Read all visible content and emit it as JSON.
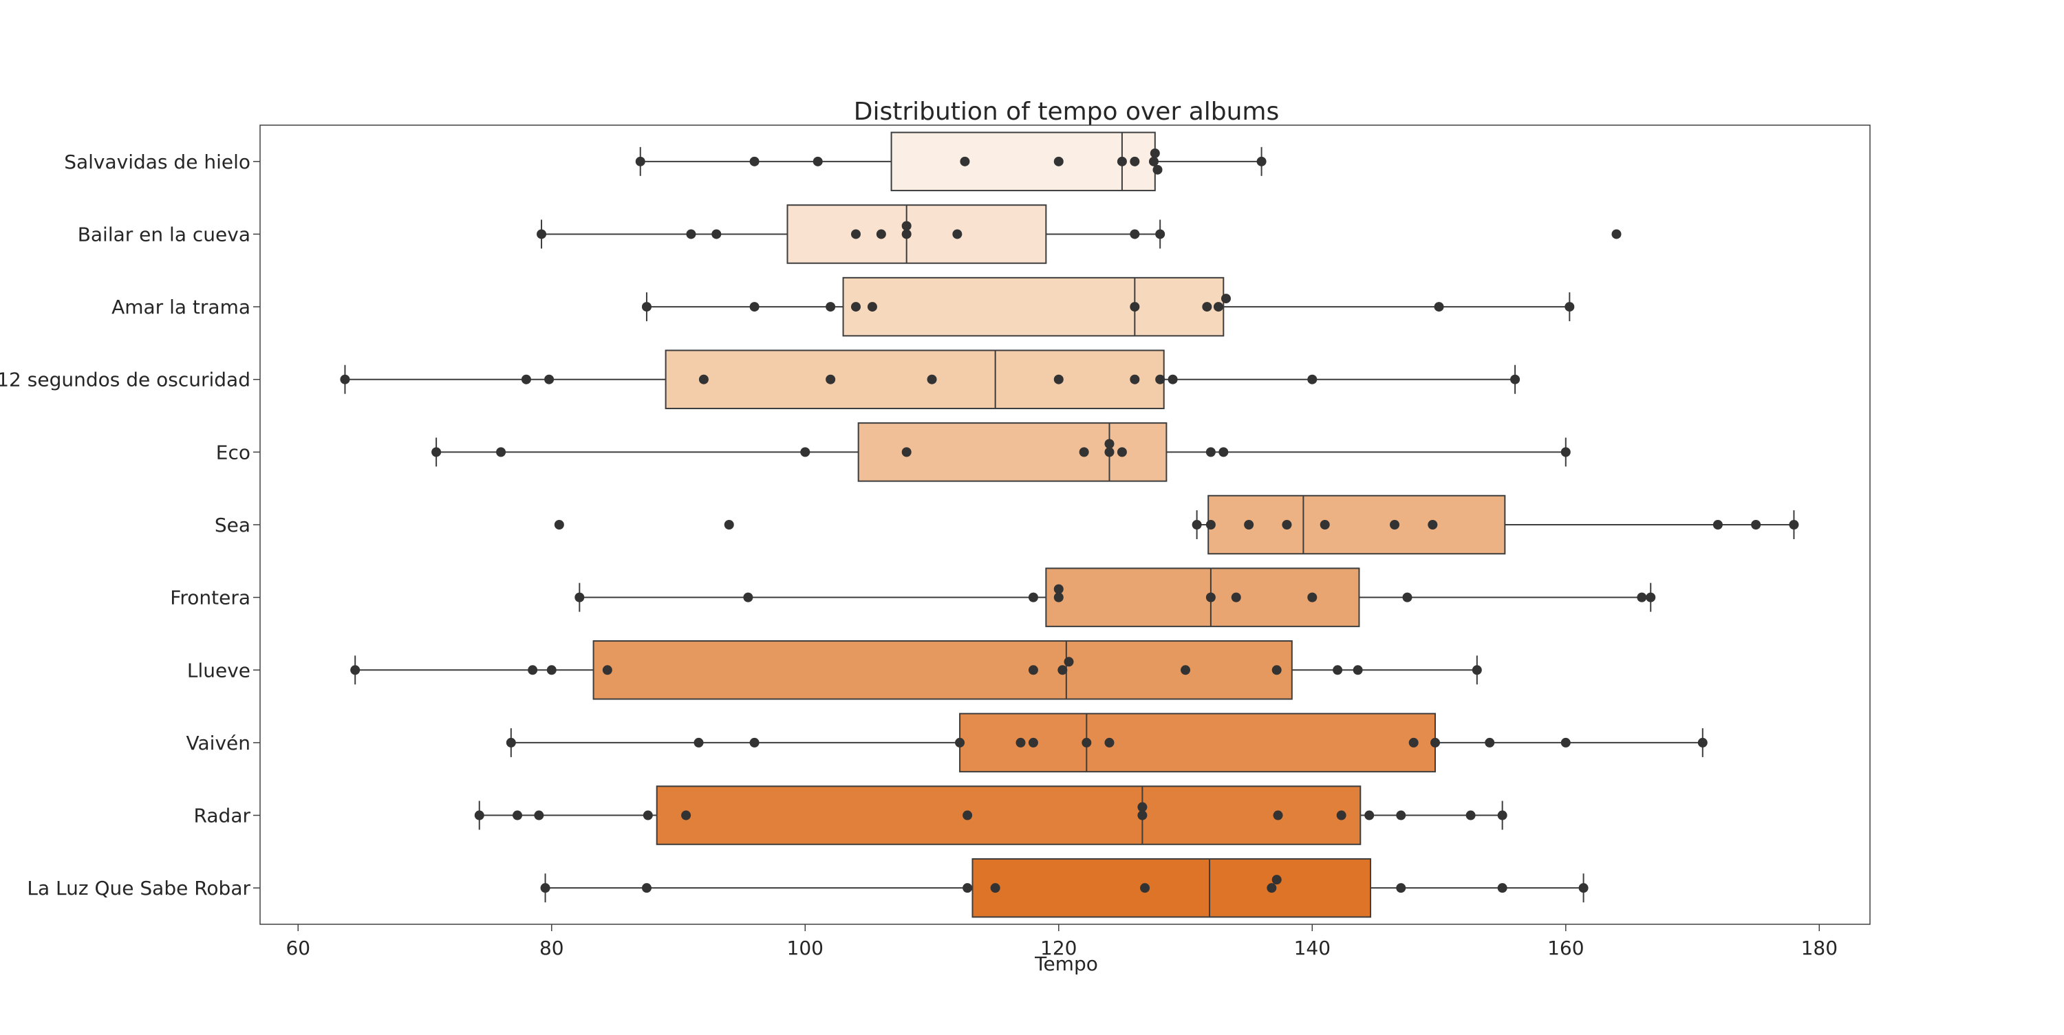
{
  "chart_data": {
    "type": "box",
    "title": "Distribution of tempo over albums",
    "xlabel": "Tempo",
    "ylabel": "",
    "xlim": [
      57,
      184
    ],
    "xticks": [
      60,
      80,
      100,
      120,
      140,
      160,
      180
    ],
    "grid": false,
    "orientation": "horizontal",
    "albums": [
      {
        "name": "Salvavidas de hielo",
        "color": "#fbefe5",
        "whisker_low": 87.0,
        "q1": 106.8,
        "median": 125.0,
        "q3": 127.6,
        "whisker_high": 136.0,
        "points": [
          87.0,
          96.0,
          101.0,
          112.6,
          120.0,
          125.0,
          126.0,
          127.5,
          127.6,
          127.8,
          136.0
        ],
        "outliers": []
      },
      {
        "name": "Bailar en la cueva",
        "color": "#f9e2d0",
        "whisker_low": 79.2,
        "q1": 98.6,
        "median": 108.0,
        "q3": 119.0,
        "whisker_high": 128.0,
        "points": [
          79.2,
          91.0,
          93.0,
          104.0,
          106.0,
          108.0,
          108.0,
          112.0,
          126.0,
          128.0
        ],
        "outliers": [
          164.0
        ]
      },
      {
        "name": "Amar la trama",
        "color": "#f6d8bd",
        "whisker_low": 87.5,
        "q1": 103.0,
        "median": 126.0,
        "q3": 133.0,
        "whisker_high": 160.3,
        "points": [
          87.5,
          96.0,
          102.0,
          104.0,
          105.3,
          126.0,
          131.7,
          132.6,
          133.2,
          150.0,
          160.3
        ],
        "outliers": []
      },
      {
        "name": "12 segundos de oscuridad",
        "color": "#f3ccaa",
        "whisker_low": 63.7,
        "q1": 89.0,
        "median": 115.0,
        "q3": 128.3,
        "whisker_high": 156.0,
        "points": [
          63.7,
          78.0,
          79.8,
          92.0,
          102.0,
          110.0,
          120.0,
          126.0,
          128.0,
          129.0,
          140.0,
          156.0
        ],
        "outliers": []
      },
      {
        "name": "Eco",
        "color": "#f0bf97",
        "whisker_low": 70.9,
        "q1": 104.2,
        "median": 124.0,
        "q3": 128.5,
        "whisker_high": 160.0,
        "points": [
          70.9,
          76.0,
          100.0,
          108.0,
          122.0,
          124.0,
          124.0,
          125.0,
          132.0,
          133.0,
          160.0
        ],
        "outliers": []
      },
      {
        "name": "Sea",
        "color": "#ecb284",
        "whisker_low": 130.9,
        "q1": 131.8,
        "median": 139.3,
        "q3": 155.2,
        "whisker_high": 178.0,
        "points": [
          130.9,
          132.0,
          135.0,
          138.0,
          141.0,
          146.5,
          149.5,
          172.0,
          175.0,
          178.0
        ],
        "outliers": [
          80.6,
          94.0
        ]
      },
      {
        "name": "Frontera",
        "color": "#e9a571",
        "whisker_low": 82.2,
        "q1": 119.0,
        "median": 132.0,
        "q3": 143.7,
        "whisker_high": 166.7,
        "points": [
          82.2,
          95.5,
          118.0,
          120.0,
          120.0,
          132.0,
          134.0,
          140.0,
          147.5,
          166.0,
          166.7
        ],
        "outliers": []
      },
      {
        "name": "Llueve",
        "color": "#e6995f",
        "whisker_low": 64.5,
        "q1": 83.3,
        "median": 120.6,
        "q3": 138.4,
        "whisker_high": 153.0,
        "points": [
          64.5,
          78.5,
          80.0,
          84.4,
          118.0,
          120.3,
          120.8,
          130.0,
          137.2,
          142.0,
          143.6,
          153.0
        ],
        "outliers": []
      },
      {
        "name": "Vaivén",
        "color": "#e38c4d",
        "whisker_low": 76.8,
        "q1": 112.2,
        "median": 122.2,
        "q3": 149.7,
        "whisker_high": 170.8,
        "points": [
          76.8,
          91.6,
          96.0,
          112.2,
          117.0,
          118.0,
          122.2,
          124.0,
          148.0,
          149.7,
          154.0,
          160.0,
          170.8
        ],
        "outliers": []
      },
      {
        "name": "Radar",
        "color": "#e0803a",
        "whisker_low": 74.3,
        "q1": 88.3,
        "median": 126.6,
        "q3": 143.8,
        "whisker_high": 155.0,
        "points": [
          74.3,
          77.3,
          79.0,
          87.6,
          90.6,
          112.8,
          126.6,
          126.6,
          137.3,
          142.3,
          144.5,
          147.0,
          152.5,
          155.0
        ],
        "outliers": []
      },
      {
        "name": "La Luz Que Sabe Robar",
        "color": "#dd7427",
        "whisker_low": 79.5,
        "q1": 113.2,
        "median": 131.9,
        "q3": 144.6,
        "whisker_high": 161.4,
        "points": [
          79.5,
          87.5,
          112.8,
          115.0,
          126.8,
          136.8,
          137.2,
          147.0,
          155.0,
          161.4
        ],
        "outliers": []
      }
    ]
  }
}
